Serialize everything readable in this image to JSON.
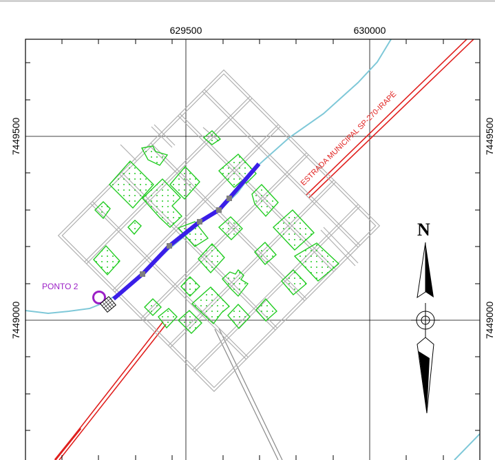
{
  "map": {
    "grid": {
      "x_labels": [
        "629500",
        "630000"
      ],
      "y_labels": [
        "7449500",
        "7449000"
      ]
    },
    "road_label": "ESTRADA MUNICIPAL  SP-270-IRAPÉ",
    "point_label": "PONTO 2",
    "north_label": "N",
    "colors": {
      "road": "#e0201e",
      "river": "#7ec8d8",
      "blocks": "#a8a8a8",
      "green_area": "#22cc22",
      "route": "#3a1ee8",
      "route_node": "#7f7f7f",
      "point": "#9b1fc6"
    },
    "icons": [
      "point-marker-icon",
      "well-icon",
      "north-arrow-icon"
    ]
  }
}
